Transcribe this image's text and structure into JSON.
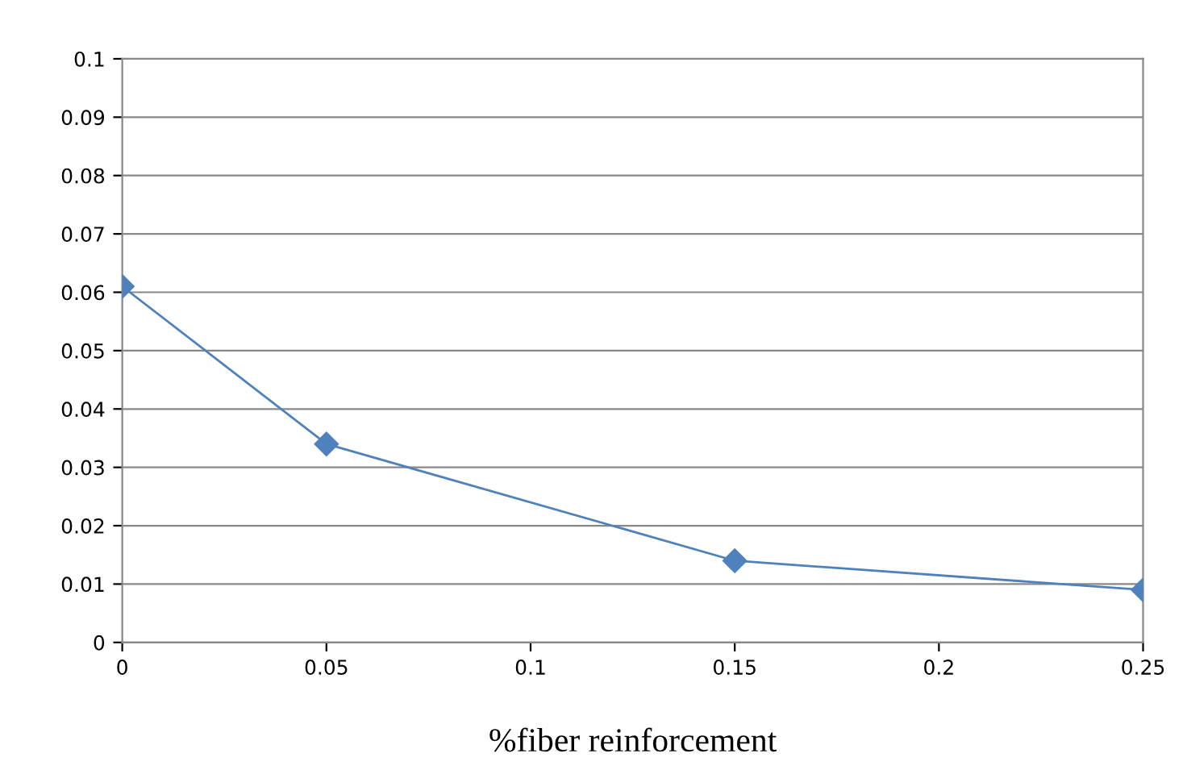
{
  "chart_data": {
    "type": "line",
    "xlabel": "%fiber reinforcement",
    "x": [
      0,
      0.05,
      0.15,
      0.25
    ],
    "series": [
      {
        "color": "#4f81bd",
        "values": [
          0.061,
          0.034,
          0.014,
          0.009
        ]
      }
    ],
    "xlim": [
      0,
      0.25
    ],
    "xticks": [
      0,
      0.05,
      0.1,
      0.15,
      0.2,
      0.25
    ],
    "ylim": [
      0,
      0.1
    ],
    "yticks": [
      0,
      0.01,
      0.02,
      0.03,
      0.04,
      0.05,
      0.06,
      0.07,
      0.08,
      0.09,
      0.1
    ],
    "grid": "y",
    "marker": "diamond",
    "line_style": "solid",
    "legend": false
  }
}
